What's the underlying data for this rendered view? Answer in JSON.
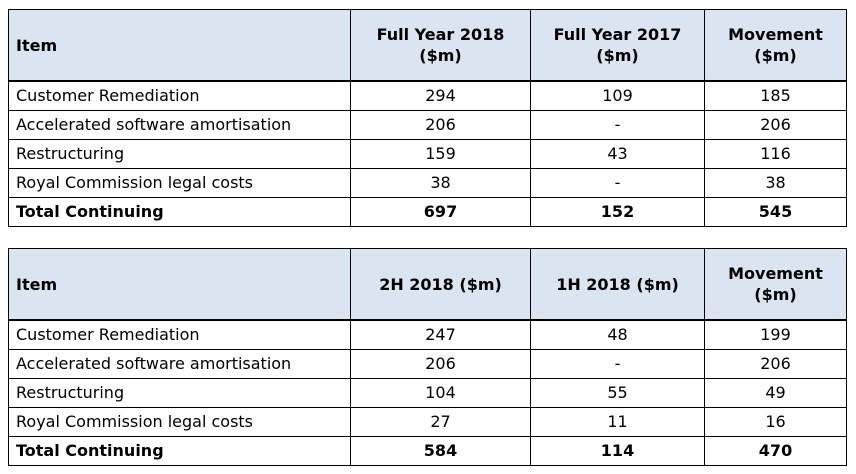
{
  "tables": [
    {
      "headers": [
        "Item",
        "Full Year 2018\n($m)",
        "Full Year 2017\n($m)",
        "Movement\n($m)"
      ],
      "rows": [
        [
          "Customer Remediation",
          "294",
          "109",
          "185"
        ],
        [
          "Accelerated software amortisation",
          "206",
          "-",
          "206"
        ],
        [
          "Restructuring",
          "159",
          "43",
          "116"
        ],
        [
          "Royal Commission legal costs",
          "38",
          "-",
          "38"
        ]
      ],
      "total": [
        "Total Continuing",
        "697",
        "152",
        "545"
      ]
    },
    {
      "headers": [
        "Item",
        "2H 2018 ($m)",
        "1H 2018 ($m)",
        "Movement\n($m)"
      ],
      "rows": [
        [
          "Customer Remediation",
          "247",
          "48",
          "199"
        ],
        [
          "Accelerated software amortisation",
          "206",
          "-",
          "206"
        ],
        [
          "Restructuring",
          "104",
          "55",
          "49"
        ],
        [
          "Royal Commission legal costs",
          "27",
          "11",
          "16"
        ]
      ],
      "total": [
        "Total Continuing",
        "584",
        "114",
        "470"
      ]
    }
  ]
}
